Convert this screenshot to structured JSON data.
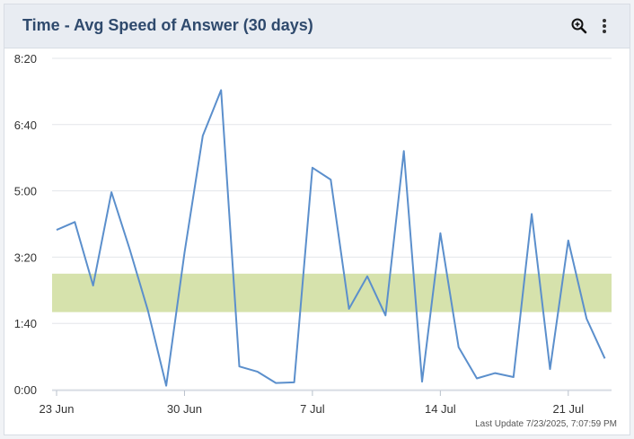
{
  "widget": {
    "title": "Time - Avg Speed of Answer (30 days)",
    "zoom_icon": "zoom-in-icon",
    "menu_icon": "more-vertical-icon",
    "last_update": "Last Update 7/23/2025, 7:07:59 PM"
  },
  "colors": {
    "line": "#5b8fcc",
    "band": "#d6e2ac",
    "grid": "#e3e6ea",
    "title": "#2f4a6d"
  },
  "chart_data": {
    "type": "line",
    "title": "Time - Avg Speed of Answer (30 days)",
    "xlabel": "",
    "ylabel": "",
    "x_tick_labels": [
      "23 Jun",
      "30 Jun",
      "7 Jul",
      "14 Jul",
      "21 Jul"
    ],
    "y_tick_labels": [
      "0:00",
      "1:40",
      "3:20",
      "5:00",
      "6:40",
      "8:20"
    ],
    "ylim_seconds": [
      0,
      500
    ],
    "x_unit": "days after 23 Jun",
    "target_band_seconds": [
      117,
      175
    ],
    "grid": true,
    "series": [
      {
        "values_seconds": [
          241,
          253,
          157,
          298,
          212,
          119,
          6,
          207,
          383,
          452,
          35,
          27,
          10,
          11,
          335,
          317,
          122,
          171,
          112,
          360,
          12,
          236,
          64,
          17,
          25,
          19,
          265,
          31,
          225,
          107,
          47
        ]
      }
    ]
  }
}
